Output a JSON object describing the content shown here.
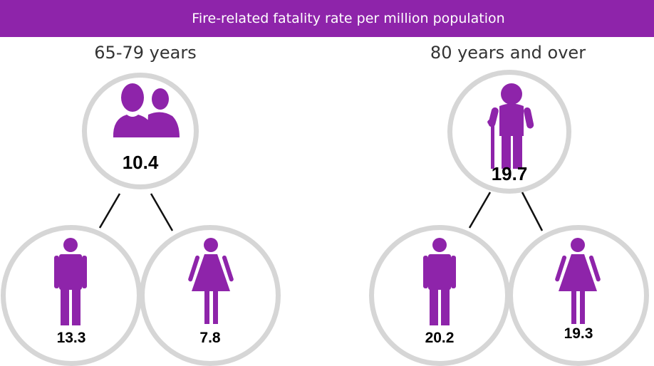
{
  "colors": {
    "accent": "#8e24aa",
    "icon": "#8e24aa",
    "ring": "#d6d6d6",
    "line": "#111111"
  },
  "header": {
    "title": "Fire-related fatality rate per million population"
  },
  "groups": [
    {
      "title": "65-79 years",
      "total": "10.4",
      "male": "13.3",
      "female": "7.8",
      "icon": "people-icon"
    },
    {
      "title": "80 years and over",
      "total": "19.7",
      "male": "20.2",
      "female": "19.3",
      "icon": "elderly-person-icon"
    }
  ],
  "chart_data": {
    "type": "table",
    "title": "Fire-related fatality rate per million population",
    "categories": [
      "65-79 years",
      "80 years and over"
    ],
    "series": [
      {
        "name": "",
        "values": [
          10.4,
          19.7
        ]
      },
      {
        "name": "",
        "values": [
          13.3,
          20.2
        ]
      },
      {
        "name": "",
        "values": [
          7.8,
          19.3
        ]
      }
    ]
  }
}
